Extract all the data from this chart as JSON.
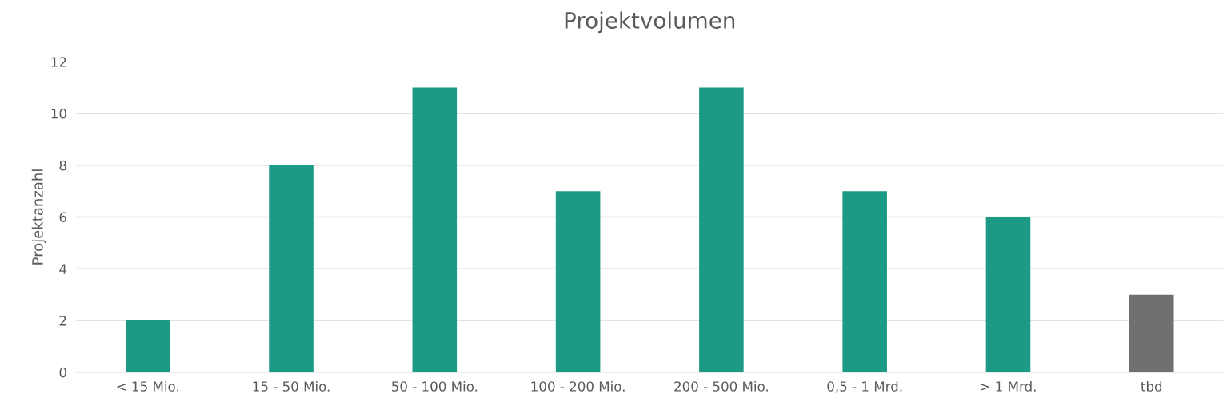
{
  "chart_data": {
    "type": "bar",
    "title": "Projektvolumen",
    "ylabel": "Projektanzahl",
    "categories": [
      "< 15 Mio.",
      "15 - 50 Mio.",
      "50 - 100 Mio.",
      "100 - 200 Mio.",
      "200 - 500 Mio.",
      "0,5 - 1 Mrd.",
      "> 1 Mrd.",
      "tbd"
    ],
    "values": [
      2,
      8,
      11,
      7,
      11,
      7,
      6,
      3
    ],
    "colors": [
      "#1c9a85",
      "#1c9a85",
      "#1c9a85",
      "#1c9a85",
      "#1c9a85",
      "#1c9a85",
      "#1c9a85",
      "#707070"
    ],
    "ylim": [
      0,
      12
    ],
    "yticks": [
      0,
      2,
      4,
      6,
      8,
      10,
      12
    ],
    "grid": "y",
    "legend": false
  }
}
